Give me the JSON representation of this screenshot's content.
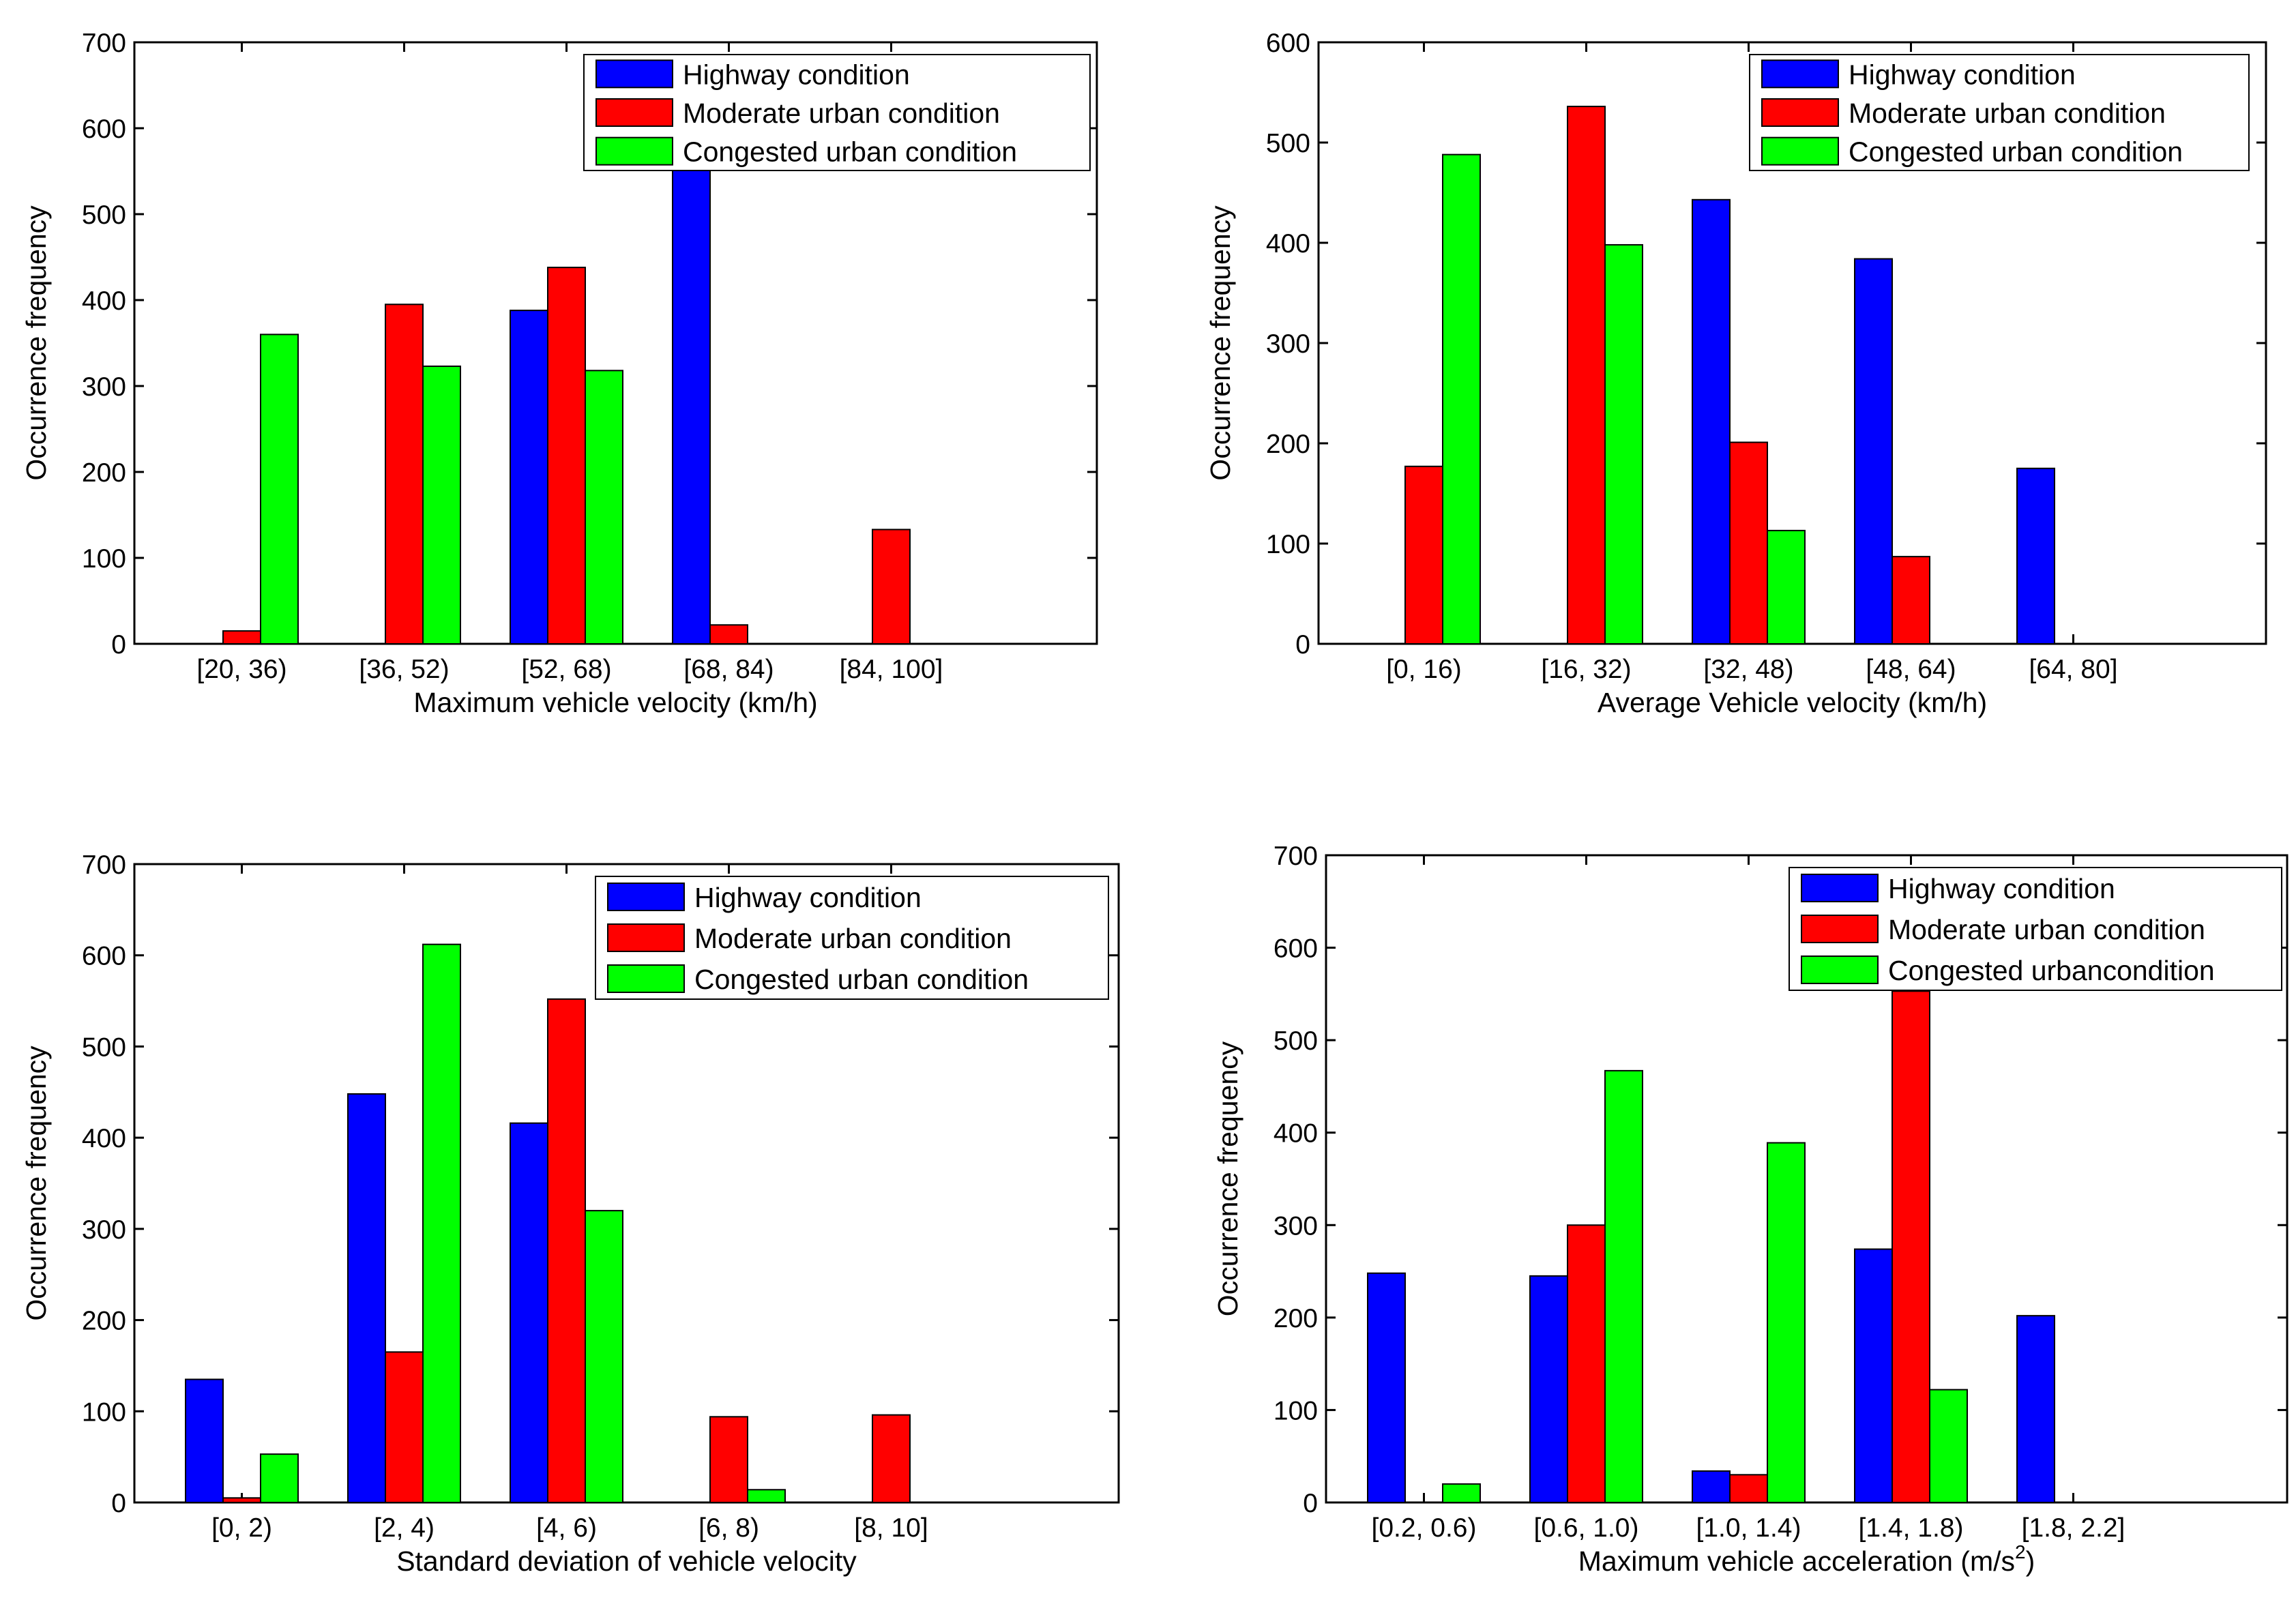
{
  "colors": {
    "highway": "#0000ff",
    "moderate": "#ff0000",
    "congested": "#00ff00",
    "axis": "#000000",
    "background": "#ffffff"
  },
  "chart_data": [
    {
      "type": "bar",
      "xlabel": "Maximum vehicle velocity (km/h)",
      "ylabel": "Occurrence frequency",
      "ylim": [
        0,
        700
      ],
      "yticks": [
        0,
        100,
        200,
        300,
        400,
        500,
        600,
        700
      ],
      "categories": [
        "[20, 36)",
        "[36, 52)",
        "[52, 68)",
        "[68, 84)",
        "[84, 100]"
      ],
      "grid": false,
      "legend_position": "top-right",
      "series": [
        {
          "name": "Highway condition",
          "color_key": "highway",
          "values": [
            0,
            0,
            388,
            552,
            0
          ]
        },
        {
          "name": "Moderate urban condition",
          "color_key": "moderate",
          "values": [
            15,
            395,
            438,
            22,
            133
          ]
        },
        {
          "name": "Congested urban condition",
          "color_key": "congested",
          "values": [
            360,
            323,
            318,
            0,
            0
          ]
        }
      ]
    },
    {
      "type": "bar",
      "xlabel": "Average Vehicle velocity (km/h)",
      "ylabel": "Occurrence frequency",
      "ylim": [
        0,
        600
      ],
      "yticks": [
        0,
        100,
        200,
        300,
        400,
        500,
        600
      ],
      "categories": [
        "[0, 16)",
        "[16, 32)",
        "[32, 48)",
        "[48, 64)",
        "[64, 80]"
      ],
      "grid": false,
      "legend_position": "top-right",
      "series": [
        {
          "name": "Highway condition",
          "color_key": "highway",
          "values": [
            0,
            0,
            443,
            384,
            175
          ]
        },
        {
          "name": "Moderate urban condition",
          "color_key": "moderate",
          "values": [
            177,
            536,
            201,
            87,
            0
          ]
        },
        {
          "name": "Congested urban condition",
          "color_key": "congested",
          "values": [
            488,
            398,
            113,
            0,
            0
          ]
        }
      ]
    },
    {
      "type": "bar",
      "xlabel": "Standard deviation of vehicle velocity",
      "ylabel": "Occurrence frequency",
      "ylim": [
        0,
        700
      ],
      "yticks": [
        0,
        100,
        200,
        300,
        400,
        500,
        600,
        700
      ],
      "categories": [
        "[0, 2)",
        "[2, 4)",
        "[4, 6)",
        "[6, 8)",
        "[8, 10]"
      ],
      "grid": false,
      "legend_position": "top-right",
      "series": [
        {
          "name": "Highway condition",
          "color_key": "highway",
          "values": [
            135,
            448,
            416,
            0,
            0
          ]
        },
        {
          "name": "Moderate urban condition",
          "color_key": "moderate",
          "values": [
            5,
            165,
            552,
            94,
            96
          ]
        },
        {
          "name": "Congested urban condition",
          "color_key": "congested",
          "values": [
            53,
            612,
            320,
            14,
            0
          ]
        }
      ]
    },
    {
      "type": "bar",
      "xlabel": "Maximum vehicle acceleration (m/s",
      "xlabel_superscript": "2",
      "xlabel_suffix": ")",
      "ylabel": "Occurrence frequency",
      "ylim": [
        0,
        700
      ],
      "yticks": [
        0,
        100,
        200,
        300,
        400,
        500,
        600,
        700
      ],
      "categories": [
        "[0.2, 0.6)",
        "[0.6, 1.0)",
        "[1.0, 1.4)",
        "[1.4, 1.8)",
        "[1.8, 2.2]"
      ],
      "grid": false,
      "legend_position": "top-right",
      "series": [
        {
          "name": "Highway condition",
          "color_key": "highway",
          "values": [
            248,
            245,
            34,
            274,
            202
          ]
        },
        {
          "name": "Moderate urban condition",
          "color_key": "moderate",
          "values": [
            0,
            300,
            30,
            553,
            0
          ]
        },
        {
          "name": "Congested urbancondition",
          "color_key": "congested",
          "values": [
            20,
            467,
            389,
            122,
            0
          ]
        }
      ]
    }
  ]
}
